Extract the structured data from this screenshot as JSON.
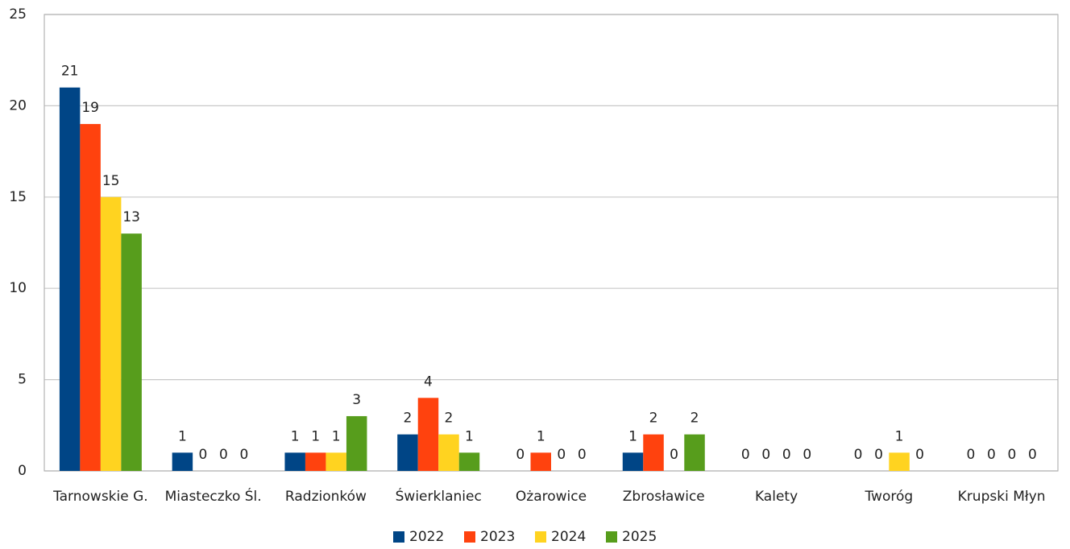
{
  "chart_data": {
    "type": "bar",
    "categories": [
      "Tarnowskie G.",
      "Miasteczko Śl.",
      "Radzionków",
      "Świerklaniec",
      "Ożarowice",
      "Zbrosławice",
      "Kalety",
      "Tworóg",
      "Krupski Młyn"
    ],
    "series": [
      {
        "name": "2022",
        "color": "#004586",
        "values": [
          21,
          1,
          1,
          2,
          0,
          1,
          0,
          0,
          0
        ]
      },
      {
        "name": "2023",
        "color": "#ff420e",
        "values": [
          19,
          0,
          1,
          4,
          1,
          2,
          0,
          0,
          0
        ]
      },
      {
        "name": "2024",
        "color": "#ffd320",
        "values": [
          15,
          0,
          1,
          2,
          0,
          0,
          0,
          1,
          0
        ]
      },
      {
        "name": "2025",
        "color": "#579d1c",
        "values": [
          13,
          0,
          3,
          1,
          0,
          2,
          0,
          0,
          0
        ]
      }
    ],
    "ylim": [
      0,
      25
    ],
    "yticks": [
      0,
      5,
      10,
      15,
      20,
      25
    ],
    "grid": true,
    "legend": "bottom"
  }
}
